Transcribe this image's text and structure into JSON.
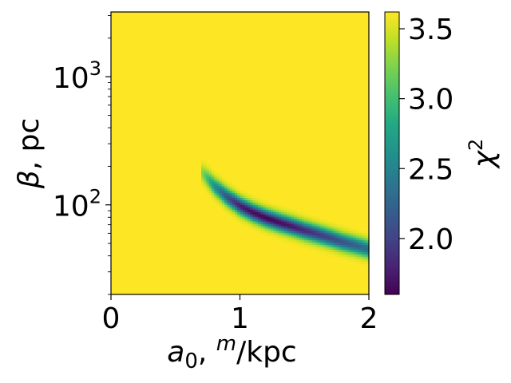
{
  "chart_data": {
    "type": "heatmap",
    "title": "",
    "xlabel": {
      "main": "a",
      "sub": "0",
      "mid": ", ",
      "sup": "m",
      "tail": "/kpc"
    },
    "ylabel": {
      "main": "β",
      "tail": ", pc"
    },
    "xlim": [
      0,
      2
    ],
    "ylim": [
      20,
      3200
    ],
    "yscale": "log",
    "x_ticks": [
      0,
      1,
      2
    ],
    "x_tick_labels": [
      "0",
      "1",
      "2"
    ],
    "y_ticks": [
      100,
      1000
    ],
    "y_tick_labels": [
      {
        "base": "10",
        "exp": "2"
      },
      {
        "base": "10",
        "exp": "3"
      }
    ],
    "colorbar": {
      "label": {
        "main": "χ",
        "sup": "2"
      },
      "range": [
        1.6,
        3.62
      ],
      "ticks": [
        2.0,
        2.5,
        3.0,
        3.5
      ],
      "tick_labels": [
        "2.0",
        "2.5",
        "3.0",
        "3.5"
      ],
      "colormap": "viridis"
    },
    "background_value": 3.62,
    "valley": {
      "description_free": true,
      "x": [
        0.7,
        0.8,
        0.9,
        1.0,
        1.1,
        1.2,
        1.3,
        1.4,
        1.5,
        1.6,
        1.7,
        1.8,
        1.9,
        2.0
      ],
      "beta": [
        180,
        140,
        115,
        98,
        87,
        79,
        73,
        68,
        63,
        59,
        55,
        51,
        48,
        45
      ],
      "min_chi2": [
        3.3,
        2.6,
        2.1,
        1.75,
        1.65,
        1.62,
        1.65,
        1.72,
        1.82,
        1.92,
        2.02,
        2.12,
        2.22,
        2.32
      ]
    }
  }
}
